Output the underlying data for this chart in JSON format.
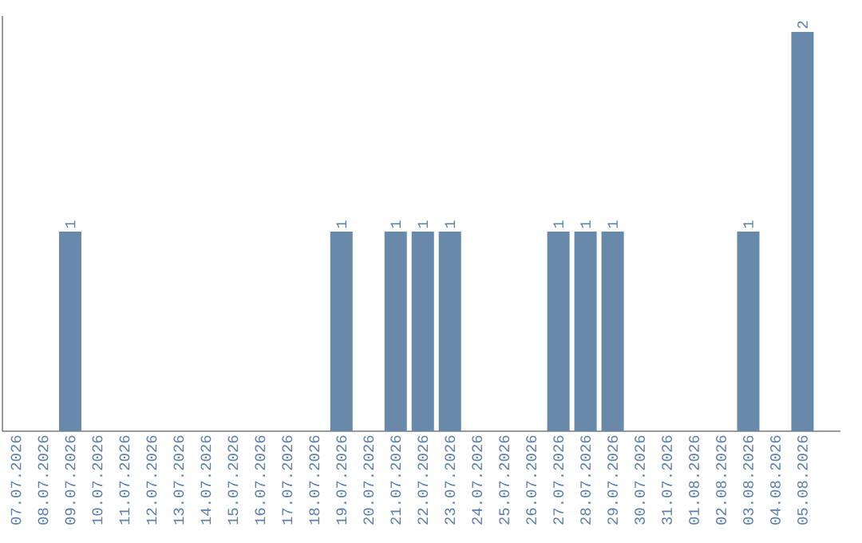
{
  "chart_data": {
    "type": "bar",
    "categories": [
      "07.07.2026",
      "08.07.2026",
      "09.07.2026",
      "10.07.2026",
      "11.07.2026",
      "12.07.2026",
      "13.07.2026",
      "14.07.2026",
      "15.07.2026",
      "16.07.2026",
      "17.07.2026",
      "18.07.2026",
      "19.07.2026",
      "20.07.2026",
      "21.07.2026",
      "22.07.2026",
      "23.07.2026",
      "24.07.2026",
      "25.07.2026",
      "26.07.2026",
      "27.07.2026",
      "28.07.2026",
      "29.07.2026",
      "30.07.2026",
      "31.07.2026",
      "01.08.2026",
      "02.08.2026",
      "03.08.2026",
      "04.08.2026",
      "05.08.2026"
    ],
    "values": [
      0,
      0,
      1,
      0,
      0,
      0,
      0,
      0,
      0,
      0,
      0,
      0,
      1,
      0,
      1,
      1,
      1,
      0,
      0,
      0,
      1,
      1,
      1,
      0,
      0,
      0,
      0,
      1,
      0,
      2
    ],
    "value_labels": [
      null,
      null,
      "1",
      null,
      null,
      null,
      null,
      null,
      null,
      null,
      null,
      null,
      "1",
      null,
      "1",
      "1",
      "1",
      null,
      null,
      null,
      "1",
      "1",
      "1",
      null,
      null,
      null,
      null,
      "1",
      null,
      "2"
    ],
    "color": "#6889a9",
    "tick_labels": "x"
  }
}
